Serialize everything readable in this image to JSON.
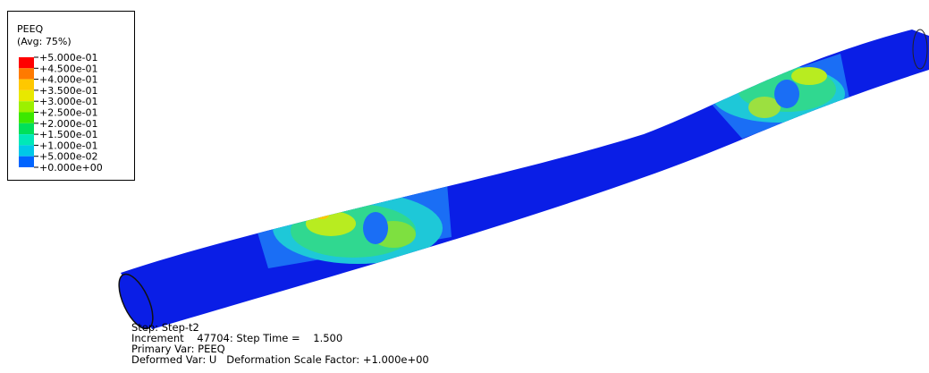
{
  "legend": {
    "title": "PEEQ",
    "subtitle": "(Avg: 75%)",
    "labels": [
      "+5.000e-01",
      "+4.500e-01",
      "+4.000e-01",
      "+3.500e-01",
      "+3.000e-01",
      "+2.500e-01",
      "+2.000e-01",
      "+1.500e-01",
      "+1.000e-01",
      "+5.000e-02",
      "+0.000e+00"
    ],
    "colors": [
      "#ff0000",
      "#ff7a00",
      "#ffc800",
      "#e8e800",
      "#9cf000",
      "#3ce800",
      "#00e05a",
      "#00e8b8",
      "#00c8e8",
      "#0064ff",
      "#0000e8"
    ]
  },
  "status": {
    "lines": [
      "Step: Step-t2",
      "Increment    47704: Step Time =    1.500",
      "Primary Var: PEEQ",
      "Deformed Var: U   Deformation Scale Factor: +1.000e+00"
    ]
  }
}
